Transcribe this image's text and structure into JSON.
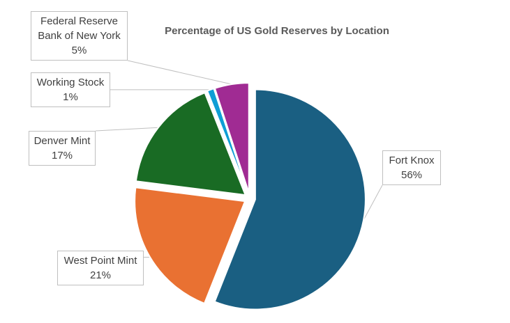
{
  "chart_data": {
    "type": "pie",
    "title": "Percentage of US Gold Reserves by Location",
    "categories": [
      "Fort Knox",
      "West Point Mint",
      "Denver Mint",
      "Working Stock",
      "Federal Reserve Bank of New York"
    ],
    "values": [
      56,
      21,
      17,
      1,
      5
    ],
    "value_labels": [
      "56%",
      "21%",
      "17%",
      "1%",
      "5%"
    ],
    "colors": [
      "#1a5f82",
      "#e97132",
      "#196b24",
      "#0f9ed5",
      "#a02b93"
    ]
  }
}
